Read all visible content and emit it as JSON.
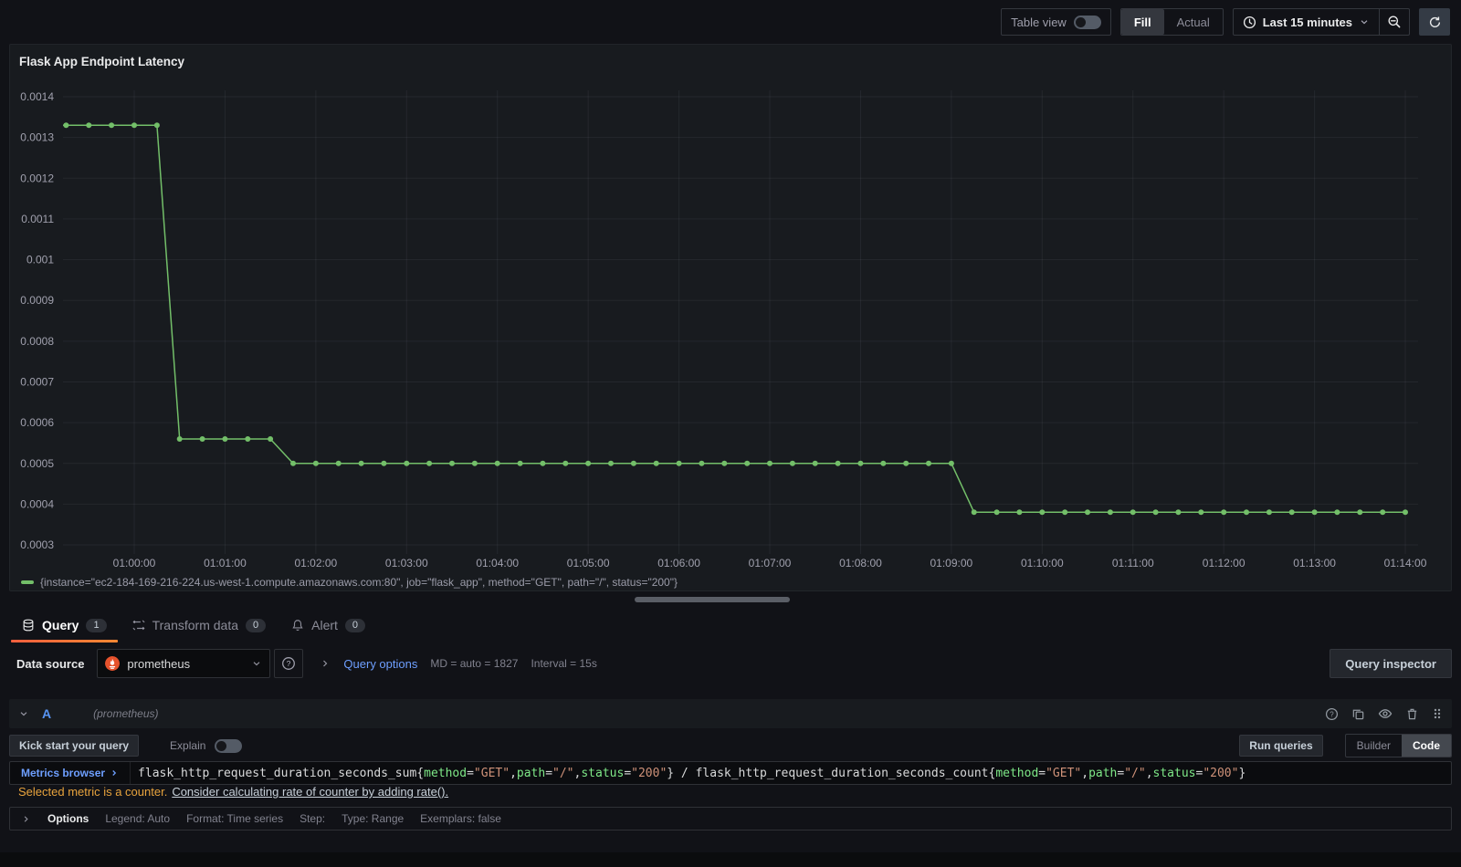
{
  "colors": {
    "series_green": "#73BF69",
    "accent_orange": "#FF780A",
    "link_blue": "#6E9FFF",
    "ref_blue": "#5794F2",
    "warning": "#E8A33D",
    "prometheus_orange": "#E6522C",
    "plain": "#D8D9DA",
    "label": "#7EE787",
    "string": "#CE9178"
  },
  "toolbar": {
    "table_view_label": "Table view",
    "fill_label": "Fill",
    "actual_label": "Actual",
    "time_range_label": "Last 15 minutes"
  },
  "panel": {
    "title": "Flask App Endpoint Latency"
  },
  "chart_data": {
    "type": "line",
    "title": "Flask App Endpoint Latency",
    "xlabel": "",
    "ylabel": "",
    "unit": "seconds",
    "grid": true,
    "legend_position": "bottom",
    "legend": "{instance=\"ec2-184-169-216-224.us-west-1.compute.amazonaws.com:80\", job=\"flask_app\", method=\"GET\", path=\"/\", status=\"200\"}",
    "y_ticks": [
      "0.0014",
      "0.0013",
      "0.0012",
      "0.0011",
      "0.001",
      "0.0009",
      "0.0008",
      "0.0007",
      "0.0006",
      "0.0005",
      "0.0004",
      "0.0003"
    ],
    "x_ticks": [
      "01:00:00",
      "01:01:00",
      "01:02:00",
      "01:03:00",
      "01:04:00",
      "01:05:00",
      "01:06:00",
      "01:07:00",
      "01:08:00",
      "01:09:00",
      "01:10:00",
      "01:11:00",
      "01:12:00",
      "01:13:00",
      "01:14:00"
    ],
    "ylim": [
      0.0003,
      0.0014
    ],
    "x_range": "00:59:10 - 01:14:05",
    "points_time_offset_seconds_from_01_00_00_and_value": true,
    "points": [
      [
        -45,
        0.00133
      ],
      [
        -30,
        0.00133
      ],
      [
        -15,
        0.00133
      ],
      [
        0,
        0.00133
      ],
      [
        15,
        0.00133
      ],
      [
        30,
        0.00056
      ],
      [
        45,
        0.00056
      ],
      [
        60,
        0.00056
      ],
      [
        75,
        0.00056
      ],
      [
        90,
        0.00056
      ],
      [
        105,
        0.0005
      ],
      [
        120,
        0.0005
      ],
      [
        135,
        0.0005
      ],
      [
        150,
        0.0005
      ],
      [
        165,
        0.0005
      ],
      [
        180,
        0.0005
      ],
      [
        195,
        0.0005
      ],
      [
        210,
        0.0005
      ],
      [
        225,
        0.0005
      ],
      [
        240,
        0.0005
      ],
      [
        255,
        0.0005
      ],
      [
        270,
        0.0005
      ],
      [
        285,
        0.0005
      ],
      [
        300,
        0.0005
      ],
      [
        315,
        0.0005
      ],
      [
        330,
        0.0005
      ],
      [
        345,
        0.0005
      ],
      [
        360,
        0.0005
      ],
      [
        375,
        0.0005
      ],
      [
        390,
        0.0005
      ],
      [
        405,
        0.0005
      ],
      [
        420,
        0.0005
      ],
      [
        435,
        0.0005
      ],
      [
        450,
        0.0005
      ],
      [
        465,
        0.0005
      ],
      [
        480,
        0.0005
      ],
      [
        495,
        0.0005
      ],
      [
        510,
        0.0005
      ],
      [
        525,
        0.0005
      ],
      [
        540,
        0.0005
      ],
      [
        555,
        0.00038
      ],
      [
        570,
        0.00038
      ],
      [
        585,
        0.00038
      ],
      [
        600,
        0.00038
      ],
      [
        615,
        0.00038
      ],
      [
        630,
        0.00038
      ],
      [
        645,
        0.00038
      ],
      [
        660,
        0.00038
      ],
      [
        675,
        0.00038
      ],
      [
        690,
        0.00038
      ],
      [
        705,
        0.00038
      ],
      [
        720,
        0.00038
      ],
      [
        735,
        0.00038
      ],
      [
        750,
        0.00038
      ],
      [
        765,
        0.00038
      ],
      [
        780,
        0.00038
      ],
      [
        795,
        0.00038
      ],
      [
        810,
        0.00038
      ],
      [
        825,
        0.00038
      ],
      [
        840,
        0.00038
      ]
    ]
  },
  "tabs": [
    {
      "label": "Query",
      "badge": "1"
    },
    {
      "label": "Transform data",
      "badge": "0"
    },
    {
      "label": "Alert",
      "badge": "0"
    }
  ],
  "datasource_bar": {
    "label": "Data source",
    "value": "prometheus",
    "query_options_label": "Query options",
    "md_summary": "MD = auto = 1827",
    "interval_summary": "Interval = 15s",
    "inspector_label": "Query inspector"
  },
  "query_row": {
    "ref_id": "A",
    "ds_hint": "(prometheus)"
  },
  "query_editor": {
    "kick_start_label": "Kick start your query",
    "explain_label": "Explain",
    "run_queries_label": "Run queries",
    "builder_label": "Builder",
    "code_label": "Code",
    "metrics_browser_label": "Metrics browser",
    "warning_text": "Selected metric is a counter.",
    "warning_link": "Consider calculating rate of counter by adding rate().",
    "query_segments": [
      {
        "type": "plain",
        "text": "flask_http_request_duration_seconds_sum{"
      },
      {
        "type": "label",
        "text": "method"
      },
      {
        "type": "plain",
        "text": "="
      },
      {
        "type": "string",
        "text": "\"GET\""
      },
      {
        "type": "plain",
        "text": ","
      },
      {
        "type": "label",
        "text": "path"
      },
      {
        "type": "plain",
        "text": "="
      },
      {
        "type": "string",
        "text": "\"/\""
      },
      {
        "type": "plain",
        "text": ","
      },
      {
        "type": "label",
        "text": "status"
      },
      {
        "type": "plain",
        "text": "="
      },
      {
        "type": "string",
        "text": "\"200\""
      },
      {
        "type": "plain",
        "text": "} / flask_http_request_duration_seconds_count{"
      },
      {
        "type": "label",
        "text": "method"
      },
      {
        "type": "plain",
        "text": "="
      },
      {
        "type": "string",
        "text": "\"GET\""
      },
      {
        "type": "plain",
        "text": ","
      },
      {
        "type": "label",
        "text": "path"
      },
      {
        "type": "plain",
        "text": "="
      },
      {
        "type": "string",
        "text": "\"/\""
      },
      {
        "type": "plain",
        "text": ","
      },
      {
        "type": "label",
        "text": "status"
      },
      {
        "type": "plain",
        "text": "="
      },
      {
        "type": "string",
        "text": "\"200\""
      },
      {
        "type": "plain",
        "text": "}"
      }
    ]
  },
  "options_bar": {
    "label": "Options",
    "items": [
      "Legend: Auto",
      "Format: Time series",
      "Step:",
      "Type: Range",
      "Exemplars: false"
    ]
  }
}
